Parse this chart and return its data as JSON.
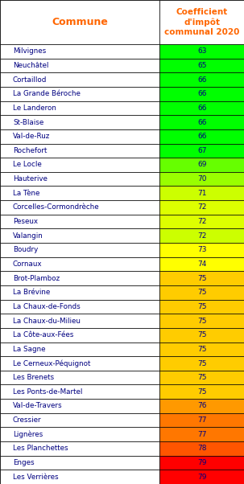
{
  "communes": [
    "Milvignes",
    "Neuchâtel",
    "Cortaillod",
    "La Grande Béroche",
    "Le Landeron",
    "St-Blaise",
    "Val-de-Ruz",
    "Rochefort",
    "Le Locle",
    "Hauterive",
    "La Tène",
    "Corcelles-Cormondrèche",
    "Peseux",
    "Valangin",
    "Boudry",
    "Cornaux",
    "Brot-Plamboz",
    "La Brévine",
    "La Chaux-de-Fonds",
    "La Chaux-du-Milieu",
    "La Côte-aux-Fées",
    "La Sagne",
    "Le Cerneux-Péquignot",
    "Les Brenets",
    "Les Ponts-de-Martel",
    "Val-de-Travers",
    "Cressier",
    "Lignères",
    "Les Planchettes",
    "Enges",
    "Les Verrières"
  ],
  "values": [
    63,
    65,
    66,
    66,
    66,
    66,
    66,
    67,
    69,
    70,
    71,
    72,
    72,
    72,
    73,
    74,
    75,
    75,
    75,
    75,
    75,
    75,
    75,
    75,
    75,
    76,
    77,
    77,
    78,
    79,
    79
  ],
  "colors": [
    "#00FF00",
    "#00FF00",
    "#00FF00",
    "#00FF00",
    "#00FF00",
    "#00FF00",
    "#00FF00",
    "#00FF00",
    "#66FF00",
    "#99FF00",
    "#CCFF00",
    "#DDFF00",
    "#DDFF00",
    "#CCFF00",
    "#FFFF00",
    "#FFFF00",
    "#FFCC00",
    "#FFCC00",
    "#FFCC00",
    "#FFCC00",
    "#FFCC00",
    "#FFCC00",
    "#FFCC00",
    "#FFCC00",
    "#FFCC00",
    "#FF9900",
    "#FF7700",
    "#FF7700",
    "#FF5500",
    "#FF0000",
    "#FF0000"
  ],
  "header_commune": "Commune",
  "header_coeff": "Coefficient\nd'impôt\ncommunal 2020",
  "header_text_color": "#FF6600",
  "row_text_color": "#000080",
  "value_text_color": "#000080",
  "border_color": "#000000",
  "col_split": 0.655
}
